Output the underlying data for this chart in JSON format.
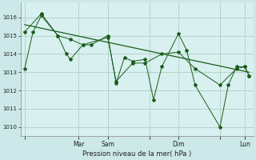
{
  "xlabel": "Pression niveau de la mer( hPa )",
  "bg_color": "#cce8e8",
  "plot_bg_color": "#d8f0f0",
  "grid_color": "#a8c8b8",
  "line_color": "#1a5c1a",
  "ylim": [
    1009.5,
    1016.8
  ],
  "yticks": [
    1010,
    1011,
    1012,
    1013,
    1014,
    1015,
    1016
  ],
  "xlim": [
    -1,
    55
  ],
  "xtick_labels": [
    "",
    "Mar",
    "Sam",
    "",
    "Dim",
    "",
    "Lun"
  ],
  "xtick_positions": [
    0,
    13,
    20,
    30,
    37,
    47,
    53
  ],
  "series1_x": [
    0,
    2,
    4,
    8,
    10,
    11,
    14,
    16,
    20,
    22,
    24,
    26,
    29,
    31,
    33,
    37,
    39,
    41,
    47,
    49,
    51,
    53,
    54
  ],
  "series1_y": [
    1013.2,
    1015.2,
    1016.1,
    1015.0,
    1014.0,
    1013.7,
    1014.5,
    1014.5,
    1015.0,
    1012.4,
    1013.8,
    1013.6,
    1013.7,
    1011.5,
    1013.3,
    1015.1,
    1014.2,
    1012.3,
    1010.0,
    1012.3,
    1013.3,
    1013.3,
    1012.8
  ],
  "series2_x": [
    0,
    4,
    8,
    11,
    14,
    20,
    22,
    26,
    29,
    33,
    37,
    41,
    47,
    51,
    53,
    54
  ],
  "series2_y": [
    1015.2,
    1016.2,
    1015.0,
    1014.8,
    1014.5,
    1014.9,
    1012.5,
    1013.5,
    1013.5,
    1014.0,
    1014.1,
    1013.2,
    1012.3,
    1013.2,
    1013.3,
    1012.8
  ],
  "trend_x": [
    0,
    54
  ],
  "trend_y": [
    1015.6,
    1013.0
  ],
  "figsize": [
    3.2,
    2.0
  ],
  "dpi": 100
}
